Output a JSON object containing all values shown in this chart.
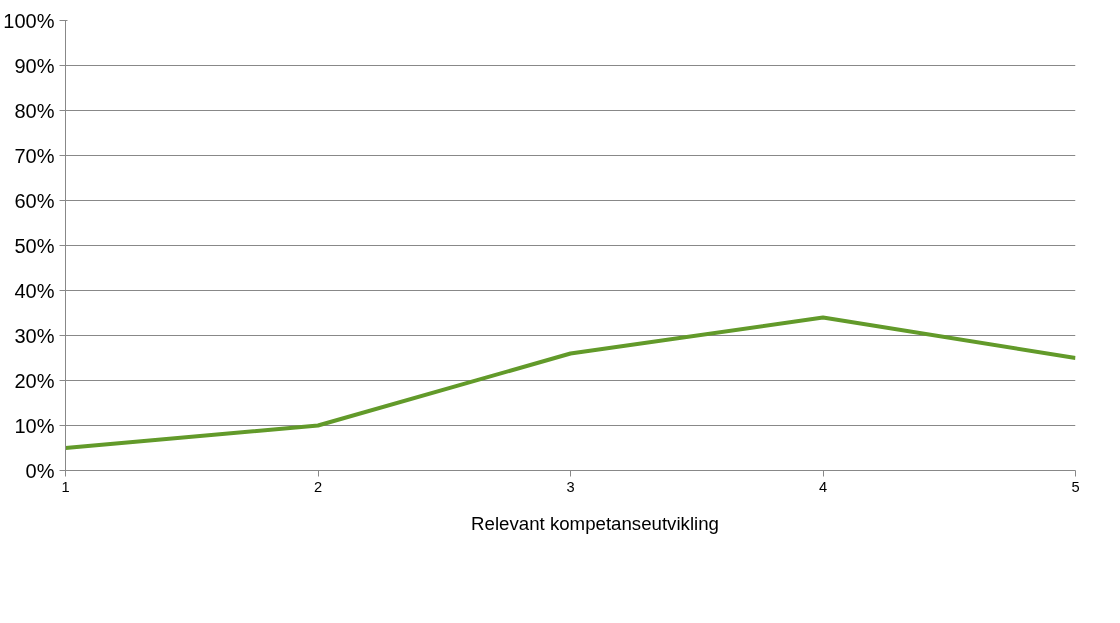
{
  "chart_data": {
    "type": "line",
    "x": [
      1,
      2,
      3,
      4,
      5
    ],
    "xlim": [
      1,
      5
    ],
    "xticks": [
      1,
      2,
      3,
      4,
      5
    ],
    "ylim": [
      0,
      100
    ],
    "yticks": [
      {
        "value": 0,
        "label": "0%"
      },
      {
        "value": 10,
        "label": "10%"
      },
      {
        "value": 20,
        "label": "20%"
      },
      {
        "value": 30,
        "label": "30%"
      },
      {
        "value": 40,
        "label": "40%"
      },
      {
        "value": 50,
        "label": "50%"
      },
      {
        "value": 60,
        "label": "60%"
      },
      {
        "value": 70,
        "label": "70%"
      },
      {
        "value": 80,
        "label": "80%"
      },
      {
        "value": 90,
        "label": "90%"
      },
      {
        "value": 100,
        "label": "100%"
      }
    ],
    "series": [
      {
        "name": "Relevant kompetanseutvikling",
        "color": "#629a2a",
        "values": [
          5,
          10,
          26,
          34,
          25
        ]
      }
    ],
    "grid": "y",
    "legend": "bottom",
    "marker": "none",
    "line_style": "solid"
  }
}
